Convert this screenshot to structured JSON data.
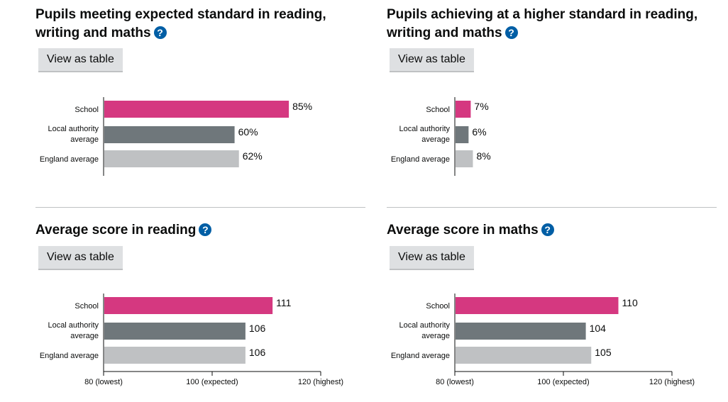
{
  "button_label": "View as table",
  "help_icon": "?",
  "colors": {
    "school": "#d53880",
    "local_authority": "#6f777b",
    "england": "#bfc1c3",
    "help": "#005ea5"
  },
  "chart_data": [
    {
      "type": "bar",
      "title": "Pupils meeting expected standard in reading, writing and maths",
      "categories": [
        "School",
        "Local authority average",
        "England average"
      ],
      "values": [
        85,
        60,
        62
      ],
      "labels": [
        "85%",
        "60%",
        "62%"
      ],
      "xlim": [
        0,
        100
      ],
      "ticks": []
    },
    {
      "type": "bar",
      "title": "Pupils achieving at a higher standard in reading, writing and maths",
      "categories": [
        "School",
        "Local authority average",
        "England average"
      ],
      "values": [
        7,
        6,
        8
      ],
      "labels": [
        "7%",
        "6%",
        "8%"
      ],
      "xlim": [
        0,
        100
      ],
      "ticks": []
    },
    {
      "type": "bar",
      "title": "Average score in reading",
      "categories": [
        "School",
        "Local authority average",
        "England average"
      ],
      "values": [
        111,
        106,
        106
      ],
      "labels": [
        "111",
        "106",
        "106"
      ],
      "xlim": [
        80,
        120
      ],
      "ticks": [
        {
          "value": 80,
          "label": "80 (lowest)"
        },
        {
          "value": 100,
          "label": "100 (expected)"
        },
        {
          "value": 120,
          "label": "120 (highest)"
        }
      ]
    },
    {
      "type": "bar",
      "title": "Average score in maths",
      "categories": [
        "School",
        "Local authority average",
        "England average"
      ],
      "values": [
        110,
        104,
        105
      ],
      "labels": [
        "110",
        "104",
        "105"
      ],
      "xlim": [
        80,
        120
      ],
      "ticks": [
        {
          "value": 80,
          "label": "80 (lowest)"
        },
        {
          "value": 100,
          "label": "100 (expected)"
        },
        {
          "value": 120,
          "label": "120 (highest)"
        }
      ]
    }
  ]
}
